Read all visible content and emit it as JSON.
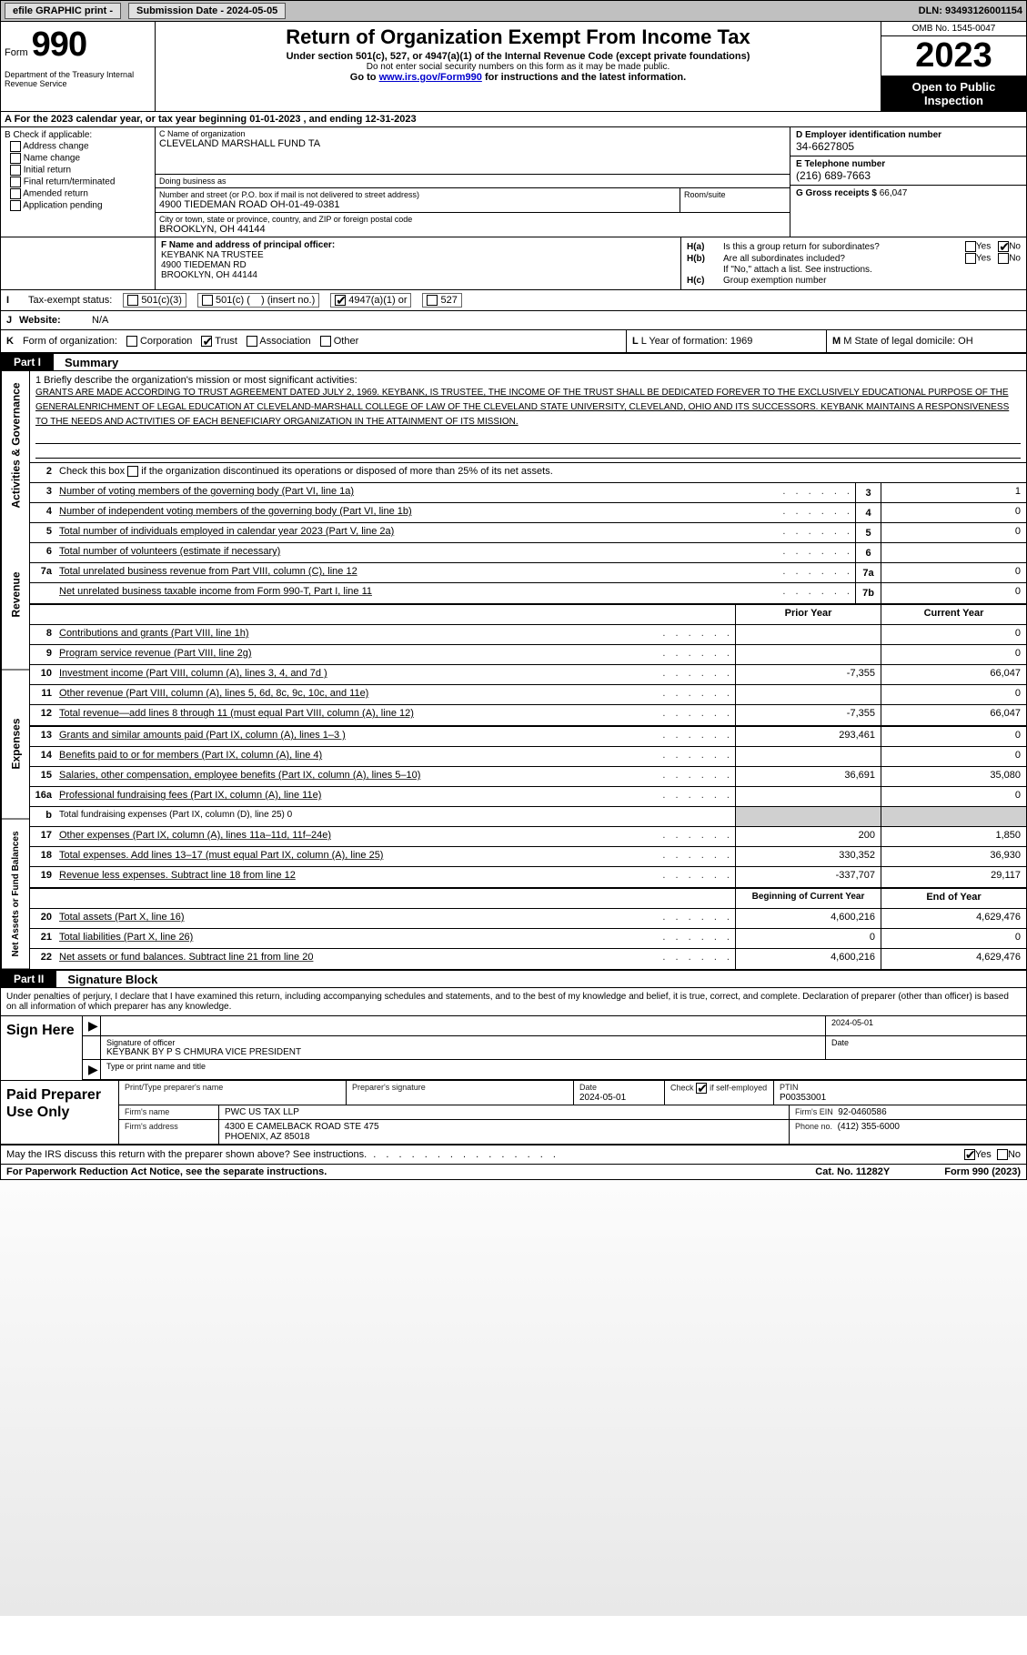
{
  "topbar": {
    "efile_label": "efile GRAPHIC print -",
    "submission_label": "Submission Date - 2024-05-05",
    "dln_label": "DLN: 93493126001154"
  },
  "header_left": {
    "form_word": "Form",
    "form_num": "990",
    "dept": "Department of the Treasury Internal Revenue Service"
  },
  "header_mid": {
    "title": "Return of Organization Exempt From Income Tax",
    "sub1": "Under section 501(c), 527, or 4947(a)(1) of the Internal Revenue Code (except private foundations)",
    "sub2": "Do not enter social security numbers on this form as it may be made public.",
    "sub3_pre": "Go to ",
    "sub3_link": "www.irs.gov/Form990",
    "sub3_post": " for instructions and the latest information."
  },
  "header_right": {
    "omb": "OMB No. 1545-0047",
    "year": "2023",
    "open": "Open to Public Inspection"
  },
  "row_a": "A For the 2023 calendar year, or tax year beginning 01-01-2023   , and ending 12-31-2023",
  "col_b": {
    "hd": "B Check if applicable:",
    "items": [
      "Address change",
      "Name change",
      "Initial return",
      "Final return/terminated",
      "Amended return",
      "Application pending"
    ]
  },
  "col_c": {
    "name_lbl": "C Name of organization",
    "name": "CLEVELAND MARSHALL FUND TA",
    "dba_lbl": "Doing business as",
    "addr_lbl": "Number and street (or P.O. box if mail is not delivered to street address)",
    "addr": "4900 TIEDEMAN ROAD OH-01-49-0381",
    "room_lbl": "Room/suite",
    "city_lbl": "City or town, state or province, country, and ZIP or foreign postal code",
    "city": "BROOKLYN, OH  44144"
  },
  "col_d": {
    "ein_lbl": "D Employer identification number",
    "ein": "34-6627805",
    "tel_lbl": "E Telephone number",
    "tel": "(216) 689-7663",
    "gross_lbl": "G Gross receipts $",
    "gross": "66,047"
  },
  "block_f": {
    "hd": "F  Name and address of principal officer:",
    "l1": "KEYBANK NA TRUSTEE",
    "l2": "4900 TIEDEMAN RD",
    "l3": "BROOKLYN, OH  44144"
  },
  "block_h": {
    "ha_lbl": "H(a)",
    "ha_txt": "Is this a group return for subordinates?",
    "hb_lbl": "H(b)",
    "hb_txt": "Are all subordinates included?",
    "hb_note": "If \"No,\" attach a list. See instructions.",
    "hc_lbl": "H(c)",
    "hc_txt": "Group exemption number ",
    "yes": "Yes",
    "no": "No"
  },
  "row_i": {
    "tag": "I",
    "lbl": "Tax-exempt status:",
    "o1": "501(c)(3)",
    "o2_a": "501(c) (",
    "o2_b": ") (insert no.)",
    "o3": "4947(a)(1) or",
    "o4": "527"
  },
  "row_j": {
    "tag": "J",
    "lbl": "Website:",
    "val": "N/A"
  },
  "row_k": {
    "tag": "K",
    "lbl": "Form of organization:",
    "opts": [
      "Corporation",
      "Trust",
      "Association",
      "Other"
    ],
    "l_lbl": "L Year of formation: 1969",
    "m_lbl": "M State of legal domicile: OH"
  },
  "part1": {
    "tag": "Part I",
    "title": "Summary"
  },
  "vtabs": {
    "ag": "Activities & Governance",
    "rev": "Revenue",
    "exp": "Expenses",
    "net": "Net Assets or Fund Balances"
  },
  "mission": {
    "intro": "1   Briefly describe the organization's mission or most significant activities:",
    "txt": "GRANTS ARE MADE ACCORDING TO TRUST AGREEMENT DATED JULY 2, 1969. KEYBANK, IS TRUSTEE, THE INCOME OF THE TRUST SHALL BE DEDICATED FOREVER TO THE EXCLUSIVELY EDUCATIONAL PURPOSE OF THE GENERALENRICHMENT OF LEGAL EDUCATION AT CLEVELAND-MARSHALL COLLEGE OF LAW OF THE CLEVELAND STATE UNIVERSITY, CLEVELAND, OHIO AND ITS SUCCESSORS. KEYBANK MAINTAINS A RESPONSIVENESS TO THE NEEDS AND ACTIVITIES OF EACH BENEFICIARY ORGANIZATION IN THE ATTAINMENT OF ITS MISSION."
  },
  "gov_lines": [
    {
      "n": "2",
      "d": "Check this box      if the organization discontinued its operations or disposed of more than 25% of its net assets.",
      "box": "",
      "v": ""
    },
    {
      "n": "3",
      "d": "Number of voting members of the governing body (Part VI, line 1a)",
      "box": "3",
      "v": "1"
    },
    {
      "n": "4",
      "d": "Number of independent voting members of the governing body (Part VI, line 1b)",
      "box": "4",
      "v": "0"
    },
    {
      "n": "5",
      "d": "Total number of individuals employed in calendar year 2023 (Part V, line 2a)",
      "box": "5",
      "v": "0"
    },
    {
      "n": "6",
      "d": "Total number of volunteers (estimate if necessary)",
      "box": "6",
      "v": ""
    },
    {
      "n": "7a",
      "d": "Total unrelated business revenue from Part VIII, column (C), line 12",
      "box": "7a",
      "v": "0"
    },
    {
      "n": "",
      "d": "Net unrelated business taxable income from Form 990-T, Part I, line 11",
      "box": "7b",
      "v": "0"
    }
  ],
  "col_hdrs": {
    "prior": "Prior Year",
    "current": "Current Year",
    "boy": "Beginning of Current Year",
    "eoy": "End of Year"
  },
  "rev_lines": [
    {
      "n": "8",
      "d": "Contributions and grants (Part VIII, line 1h)",
      "p": "",
      "c": "0"
    },
    {
      "n": "9",
      "d": "Program service revenue (Part VIII, line 2g)",
      "p": "",
      "c": "0"
    },
    {
      "n": "10",
      "d": "Investment income (Part VIII, column (A), lines 3, 4, and 7d )",
      "p": "-7,355",
      "c": "66,047"
    },
    {
      "n": "11",
      "d": "Other revenue (Part VIII, column (A), lines 5, 6d, 8c, 9c, 10c, and 11e)",
      "p": "",
      "c": "0"
    },
    {
      "n": "12",
      "d": "Total revenue—add lines 8 through 11 (must equal Part VIII, column (A), line 12)",
      "p": "-7,355",
      "c": "66,047"
    }
  ],
  "exp_lines": [
    {
      "n": "13",
      "d": "Grants and similar amounts paid (Part IX, column (A), lines 1–3 )",
      "p": "293,461",
      "c": "0"
    },
    {
      "n": "14",
      "d": "Benefits paid to or for members (Part IX, column (A), line 4)",
      "p": "",
      "c": "0"
    },
    {
      "n": "15",
      "d": "Salaries, other compensation, employee benefits (Part IX, column (A), lines 5–10)",
      "p": "36,691",
      "c": "35,080"
    },
    {
      "n": "16a",
      "d": "Professional fundraising fees (Part IX, column (A), line 11e)",
      "p": "",
      "c": "0"
    },
    {
      "n": "b",
      "d": "Total fundraising expenses (Part IX, column (D), line 25) 0",
      "p": "GREY",
      "c": "GREY"
    },
    {
      "n": "17",
      "d": "Other expenses (Part IX, column (A), lines 11a–11d, 11f–24e)",
      "p": "200",
      "c": "1,850"
    },
    {
      "n": "18",
      "d": "Total expenses. Add lines 13–17 (must equal Part IX, column (A), line 25)",
      "p": "330,352",
      "c": "36,930"
    },
    {
      "n": "19",
      "d": "Revenue less expenses. Subtract line 18 from line 12",
      "p": "-337,707",
      "c": "29,117"
    }
  ],
  "net_lines": [
    {
      "n": "20",
      "d": "Total assets (Part X, line 16)",
      "p": "4,600,216",
      "c": "4,629,476"
    },
    {
      "n": "21",
      "d": "Total liabilities (Part X, line 26)",
      "p": "0",
      "c": "0"
    },
    {
      "n": "22",
      "d": "Net assets or fund balances. Subtract line 21 from line 20",
      "p": "4,600,216",
      "c": "4,629,476"
    }
  ],
  "part2": {
    "tag": "Part II",
    "title": "Signature Block"
  },
  "sig_intro": "Under penalties of perjury, I declare that I have examined this return, including accompanying schedules and statements, and to the best of my knowledge and belief, it is true, correct, and complete. Declaration of preparer (other than officer) is based on all information of which preparer has any knowledge.",
  "sign_here": "Sign Here",
  "sig": {
    "date_top": "2024-05-01",
    "off_lbl": "Signature of officer",
    "off_name": "KEYBANK BY P S CHMURA  VICE PRESIDENT",
    "type_lbl": "Type or print name and title",
    "date_lbl": "Date"
  },
  "prep_hdr": "Paid Preparer Use Only",
  "prep": {
    "pt_lbl": "Print/Type preparer's name",
    "sig_lbl": "Preparer's signature",
    "date_lbl": "Date",
    "date": "2024-05-01",
    "check_lbl_a": "Check",
    "check_lbl_b": "if self-employed",
    "ptin_lbl": "PTIN",
    "ptin": "P00353001",
    "firm_name_lbl": "Firm's name",
    "firm_name": "PWC US TAX LLP",
    "firm_ein_lbl": "Firm's EIN",
    "firm_ein": "92-0460586",
    "firm_addr_lbl": "Firm's address",
    "firm_addr1": "4300 E CAMELBACK ROAD STE 475",
    "firm_addr2": "PHOENIX, AZ  85018",
    "phone_lbl": "Phone no.",
    "phone": "(412) 355-6000"
  },
  "discuss": {
    "txt": "May the IRS discuss this return with the preparer shown above? See instructions.",
    "yes": "Yes",
    "no": "No"
  },
  "footer": {
    "pra": "For Paperwork Reduction Act Notice, see the separate instructions.",
    "cat": "Cat. No. 11282Y",
    "form": "Form 990 (2023)"
  }
}
